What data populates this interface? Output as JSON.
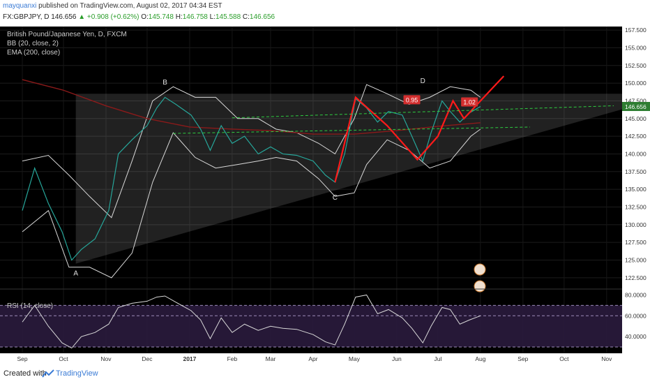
{
  "header": {
    "author": "mayquanxi",
    "published": "published on TradingView.com, August 02, 2017 04:34 EST",
    "symbol": "FX:GBPJPY, D",
    "last": "146.656",
    "change": "+0.908 (+0.62%)",
    "ohlc": {
      "o": "145.748",
      "h": "146.758",
      "l": "145.588",
      "c": "146.656"
    }
  },
  "legend": [
    "British Pound/Japanese Yen, D, FXCM",
    "BB (20, close, 2)",
    "EMA (200, close)"
  ],
  "rsi_label": "RSI (14, close)",
  "footer": {
    "created": "Created with",
    "brand": "TradingView"
  },
  "colors": {
    "background": "#000000",
    "up": "#26a69a",
    "down": "#ef5350",
    "bb": "#d8d8d8",
    "ema": "#8b1a1a",
    "pattern": "#ff1a1a",
    "rsi": "#d8d8d8",
    "rsi_band": "#2a1b3d",
    "price_tag": "#2e7d32"
  },
  "annotations": {
    "points": [
      {
        "label": "A",
        "date": "2016-10-10",
        "price": 124.0
      },
      {
        "label": "B",
        "date": "2016-12-14",
        "price": 149.2
      },
      {
        "label": "C",
        "date": "2017-04-17",
        "price": 134.7
      },
      {
        "label": "D",
        "date": "2017-06-20",
        "price": 149.4
      }
    ],
    "ratios": [
      {
        "text": "0.95",
        "date": "2017-06-12",
        "price": 147.6
      },
      {
        "text": "1.02",
        "date": "2017-07-24",
        "price": 147.3
      }
    ]
  },
  "chart_data": [
    {
      "type": "line",
      "title": "British Pound/Japanese Yen, D, FXCM",
      "x_ticks": [
        "Sep",
        "Oct",
        "Nov",
        "Dec",
        "2017",
        "Feb",
        "Mar",
        "Apr",
        "May",
        "Jun",
        "Jul",
        "Aug",
        "Sep",
        "Oct",
        "Nov"
      ],
      "y_ticks": [
        "122.500",
        "125.000",
        "127.500",
        "130.000",
        "132.500",
        "135.000",
        "137.500",
        "140.000",
        "142.500",
        "145.000",
        "147.500",
        "150.000",
        "152.500",
        "155.000",
        "157.500"
      ],
      "ylim": [
        121.5,
        158.0
      ],
      "last_price": "146.656",
      "series": [
        {
          "name": "GBPJPY",
          "x": [
            "2016-09-01",
            "2016-09-10",
            "2016-09-20",
            "2016-09-30",
            "2016-10-07",
            "2016-10-14",
            "2016-10-24",
            "2016-11-03",
            "2016-11-10",
            "2016-11-20",
            "2016-12-01",
            "2016-12-08",
            "2016-12-14",
            "2016-12-22",
            "2017-01-02",
            "2017-01-09",
            "2017-01-16",
            "2017-01-24",
            "2017-02-01",
            "2017-02-10",
            "2017-02-20",
            "2017-03-01",
            "2017-03-10",
            "2017-03-20",
            "2017-04-01",
            "2017-04-10",
            "2017-04-17",
            "2017-04-24",
            "2017-05-02",
            "2017-05-10",
            "2017-05-18",
            "2017-05-26",
            "2017-06-05",
            "2017-06-12",
            "2017-06-20",
            "2017-06-26",
            "2017-07-04",
            "2017-07-10",
            "2017-07-17",
            "2017-07-24",
            "2017-08-01"
          ],
          "values": [
            132,
            138,
            133,
            129,
            125,
            126.5,
            128,
            132,
            140,
            142,
            144,
            146.5,
            148,
            147,
            145.5,
            143.5,
            140.5,
            144,
            141.5,
            142.5,
            140,
            141,
            140,
            139.8,
            139,
            137,
            136,
            140,
            147.8,
            146.5,
            144.5,
            146,
            145.5,
            142.5,
            139,
            143,
            147.5,
            146,
            144.5,
            145.8,
            146.7
          ]
        },
        {
          "name": "EMA (200, close)",
          "x": [
            "2016-09-01",
            "2016-10-01",
            "2016-11-01",
            "2016-12-01",
            "2017-01-01",
            "2017-02-01",
            "2017-03-01",
            "2017-04-01",
            "2017-05-01",
            "2017-06-01",
            "2017-07-01",
            "2017-08-01"
          ],
          "values": [
            150.5,
            149,
            146.8,
            145,
            143.8,
            143.5,
            143.3,
            142.8,
            142.8,
            143.3,
            143.9,
            144.4
          ]
        },
        {
          "name": "BB upper",
          "x": [
            "2016-09-01",
            "2016-09-20",
            "2016-10-05",
            "2016-10-20",
            "2016-11-05",
            "2016-11-20",
            "2016-12-05",
            "2016-12-20",
            "2017-01-05",
            "2017-01-20",
            "2017-02-05",
            "2017-02-20",
            "2017-03-05",
            "2017-03-20",
            "2017-04-05",
            "2017-04-17",
            "2017-05-01",
            "2017-05-10",
            "2017-05-25",
            "2017-06-10",
            "2017-06-25",
            "2017-07-10",
            "2017-07-25",
            "2017-08-01"
          ],
          "values": [
            139,
            139.8,
            137,
            134,
            131,
            139,
            147.5,
            149.5,
            148,
            148,
            145,
            145,
            143.5,
            143,
            141.5,
            140,
            145,
            149.8,
            148.5,
            147,
            148,
            149.5,
            149,
            148
          ]
        },
        {
          "name": "BB lower",
          "x": [
            "2016-09-01",
            "2016-09-20",
            "2016-10-05",
            "2016-10-20",
            "2016-11-05",
            "2016-11-20",
            "2016-12-05",
            "2016-12-20",
            "2017-01-05",
            "2017-01-20",
            "2017-02-05",
            "2017-02-20",
            "2017-03-05",
            "2017-03-20",
            "2017-04-05",
            "2017-04-17",
            "2017-05-01",
            "2017-05-10",
            "2017-05-25",
            "2017-06-10",
            "2017-06-25",
            "2017-07-10",
            "2017-07-25",
            "2017-08-01"
          ],
          "values": [
            129,
            132,
            124,
            124,
            122.5,
            126,
            136,
            143,
            139.5,
            138,
            138.5,
            139,
            139.5,
            139,
            136.5,
            134,
            134.5,
            138.5,
            142,
            140.5,
            138,
            139,
            142.5,
            143.5
          ]
        },
        {
          "name": "Pattern",
          "x": [
            "2017-04-17",
            "2017-05-02",
            "2017-05-25",
            "2017-06-16",
            "2017-07-01",
            "2017-07-12",
            "2017-07-20",
            "2017-08-01",
            "2017-08-18"
          ],
          "values": [
            136,
            148,
            144,
            139.2,
            142.5,
            147.5,
            145,
            147.5,
            151
          ]
        }
      ]
    },
    {
      "type": "line",
      "title": "RSI (14, close)",
      "y_ticks": [
        "40.0000",
        "60.0000",
        "80.0000"
      ],
      "ylim": [
        24,
        83
      ],
      "bands": [
        30,
        60,
        70
      ],
      "series": [
        {
          "name": "RSI",
          "x": [
            "2016-09-01",
            "2016-09-10",
            "2016-09-20",
            "2016-09-30",
            "2016-10-07",
            "2016-10-14",
            "2016-10-24",
            "2016-11-03",
            "2016-11-10",
            "2016-11-20",
            "2016-12-01",
            "2016-12-08",
            "2016-12-14",
            "2016-12-22",
            "2017-01-02",
            "2017-01-09",
            "2017-01-16",
            "2017-01-24",
            "2017-02-01",
            "2017-02-10",
            "2017-02-20",
            "2017-03-01",
            "2017-03-10",
            "2017-03-20",
            "2017-04-01",
            "2017-04-10",
            "2017-04-17",
            "2017-04-24",
            "2017-05-02",
            "2017-05-10",
            "2017-05-18",
            "2017-05-26",
            "2017-06-05",
            "2017-06-12",
            "2017-06-20",
            "2017-06-26",
            "2017-07-04",
            "2017-07-10",
            "2017-07-17",
            "2017-07-24",
            "2017-08-01"
          ],
          "values": [
            54,
            70,
            50,
            34,
            29,
            40,
            44,
            52,
            68,
            72,
            74,
            78,
            79,
            73,
            65,
            56,
            38,
            58,
            44,
            52,
            46,
            50,
            48,
            47,
            42,
            35,
            32,
            52,
            78,
            80,
            62,
            66,
            58,
            48,
            34,
            50,
            68,
            66,
            52,
            56,
            60
          ]
        }
      ]
    }
  ]
}
